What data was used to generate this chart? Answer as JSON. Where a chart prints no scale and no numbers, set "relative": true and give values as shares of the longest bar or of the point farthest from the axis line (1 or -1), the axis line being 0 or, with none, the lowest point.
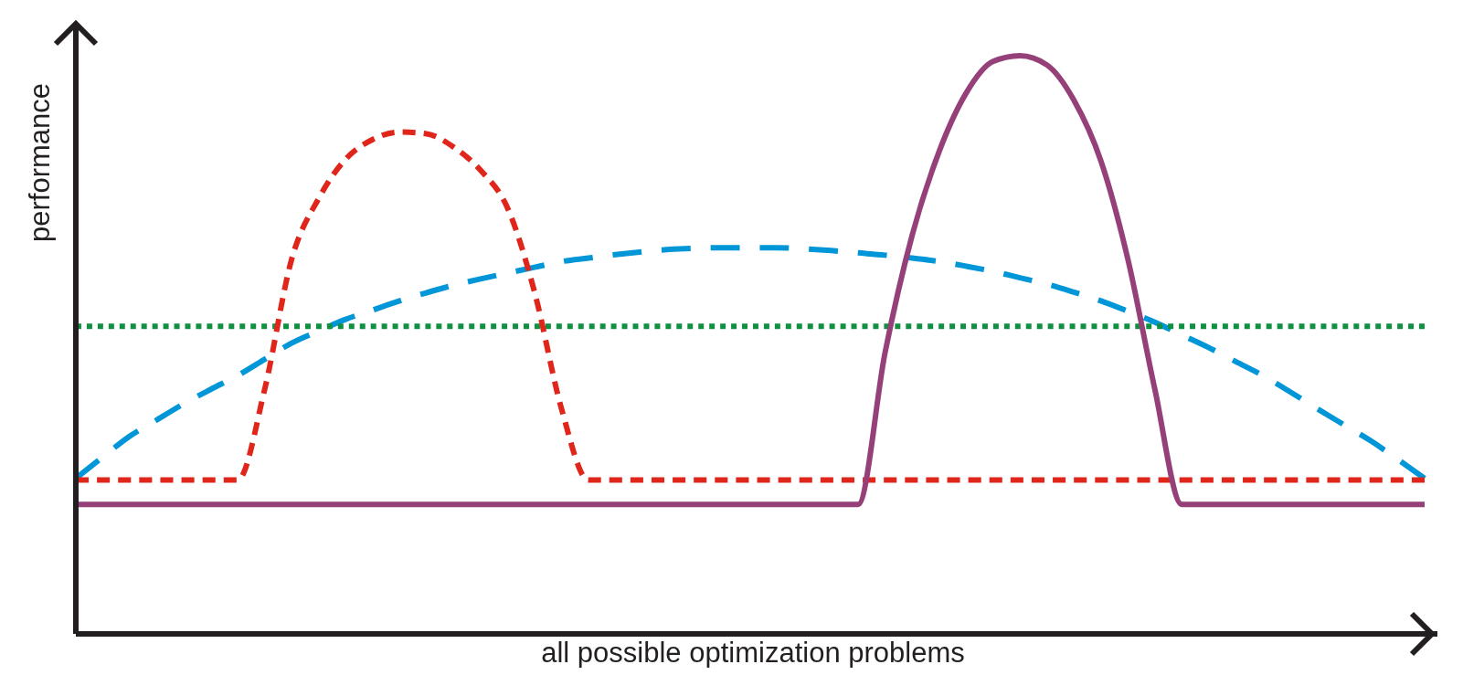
{
  "chart_data": {
    "type": "line",
    "relative": true,
    "xlabel": "all possible optimization problems",
    "ylabel": "performance",
    "categories": [
      null,
      null,
      null,
      null,
      null,
      null,
      null,
      null,
      null,
      null,
      null,
      null,
      null,
      null,
      null,
      null,
      null,
      null,
      null,
      null,
      null,
      null,
      null,
      null,
      null,
      null,
      null,
      null,
      null,
      null,
      null,
      null,
      null,
      null,
      null,
      null,
      null,
      null,
      null,
      null,
      null,
      null,
      null,
      null,
      null,
      null,
      null,
      null,
      null,
      null,
      null
    ],
    "series": [
      {
        "color": "#0096d8",
        "line_style": "dashed",
        "values": [
          0.269,
          0.306,
          0.342,
          0.37,
          0.398,
          0.423,
          0.447,
          0.475,
          0.503,
          0.524,
          0.544,
          0.56,
          0.576,
          0.59,
          0.603,
          0.614,
          0.624,
          0.634,
          0.644,
          0.65,
          0.656,
          0.661,
          0.665,
          0.667,
          0.668,
          0.668,
          0.668,
          0.666,
          0.663,
          0.659,
          0.655,
          0.65,
          0.644,
          0.636,
          0.627,
          0.616,
          0.605,
          0.591,
          0.576,
          0.558,
          0.539,
          0.517,
          0.495,
          0.471,
          0.447,
          0.419,
          0.39,
          0.362,
          0.334,
          0.302,
          0.269
        ]
      },
      {
        "color": "#109040",
        "line_style": "dotted",
        "values": [
          0.532,
          0.532,
          0.532,
          0.532,
          0.532,
          0.532,
          0.532,
          0.532,
          0.532,
          0.532,
          0.532,
          0.532,
          0.532,
          0.532,
          0.532,
          0.532,
          0.532,
          0.532,
          0.532,
          0.532,
          0.532,
          0.532,
          0.532,
          0.532,
          0.532,
          0.532,
          0.532,
          0.532,
          0.532,
          0.532,
          0.532,
          0.532,
          0.532,
          0.532,
          0.532,
          0.532,
          0.532,
          0.532,
          0.532,
          0.532,
          0.532,
          0.532,
          0.532,
          0.532,
          0.532,
          0.532,
          0.532,
          0.532,
          0.532,
          0.532,
          0.532
        ]
      },
      {
        "color": "#e0251b",
        "line_style": "dashed",
        "values": [
          0.266,
          0.266,
          0.266,
          0.266,
          0.266,
          0.266,
          0.266,
          0.423,
          0.648,
          0.753,
          0.821,
          0.855,
          0.868,
          0.865,
          0.842,
          0.802,
          0.737,
          0.592,
          0.39,
          0.266,
          0.266,
          0.266,
          0.266,
          0.266,
          0.266,
          0.266,
          0.266,
          0.266,
          0.266,
          0.266,
          0.266,
          0.266,
          0.266,
          0.266,
          0.266,
          0.266,
          0.266,
          0.266,
          0.266,
          0.266,
          0.266,
          0.266,
          0.266,
          0.266,
          0.266,
          0.266,
          0.266,
          0.266,
          0.266,
          0.266,
          0.266
        ]
      },
      {
        "color": "#96407a",
        "line_style": "solid",
        "values": [
          0.224,
          0.224,
          0.224,
          0.224,
          0.224,
          0.224,
          0.224,
          0.224,
          0.224,
          0.224,
          0.224,
          0.224,
          0.224,
          0.224,
          0.224,
          0.224,
          0.224,
          0.224,
          0.224,
          0.224,
          0.224,
          0.224,
          0.224,
          0.224,
          0.224,
          0.224,
          0.224,
          0.224,
          0.224,
          0.224,
          0.487,
          0.689,
          0.834,
          0.935,
          0.99,
          1,
          0.984,
          0.923,
          0.818,
          0.648,
          0.423,
          0.224,
          0.224,
          0.224,
          0.224,
          0.224,
          0.224,
          0.224,
          0.224,
          0.224,
          0.224
        ]
      }
    ]
  }
}
